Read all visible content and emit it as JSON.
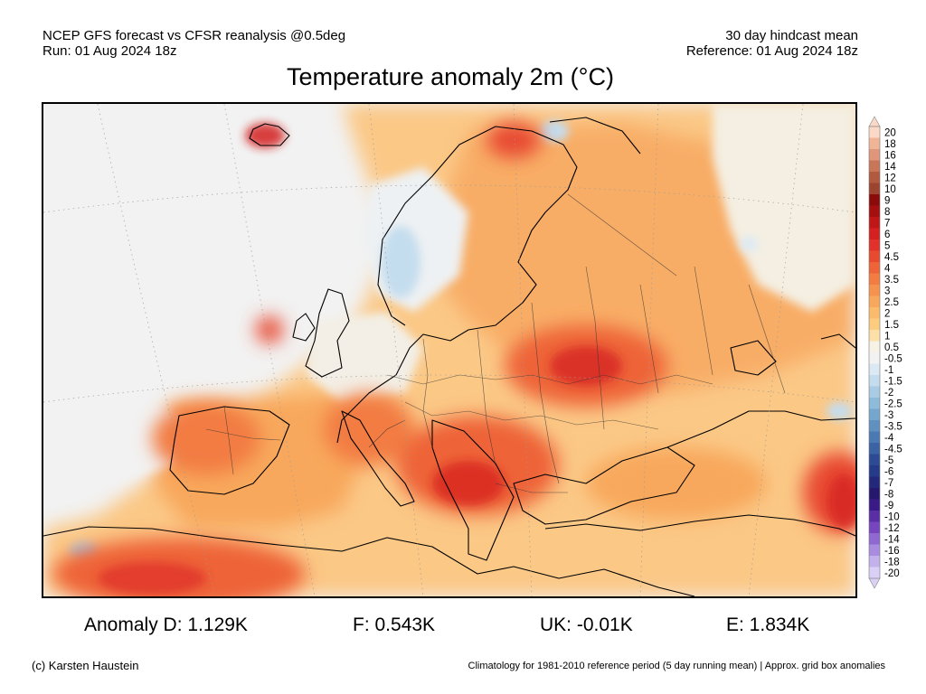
{
  "header": {
    "left_line1": "NCEP GFS forecast vs CFSR reanalysis @0.5deg",
    "left_line2": "Run: 01 Aug 2024 18z",
    "right_line1": "30 day hindcast mean",
    "right_line2": "Reference: 01 Aug 2024 18z"
  },
  "title": "Temperature anomaly 2m (°C)",
  "colorbar": {
    "labels": [
      "20",
      "18",
      "16",
      "14",
      "12",
      "10",
      "9",
      "8",
      "7",
      "6",
      "5",
      "4.5",
      "4",
      "3.5",
      "3",
      "2.5",
      "2",
      "1.5",
      "1",
      "0.5",
      "-0.5",
      "-1",
      "-1.5",
      "-2",
      "-2.5",
      "-3",
      "-3.5",
      "-4",
      "-4.5",
      "-5",
      "-6",
      "-7",
      "-8",
      "-9",
      "-10",
      "-12",
      "-14",
      "-16",
      "-18",
      "-20"
    ],
    "colors": [
      "#fbd9c6",
      "#f0b597",
      "#e0967a",
      "#c97558",
      "#b25a40",
      "#9c4430",
      "#8b0b0b",
      "#a50f0f",
      "#bf1717",
      "#d42020",
      "#e0322a",
      "#e84a30",
      "#ee6338",
      "#f27c42",
      "#f5934e",
      "#f8a85c",
      "#fabb6c",
      "#fccc80",
      "#fde0a8",
      "#f6f2e6",
      "#f2f2f2",
      "#dbe9f5",
      "#c4ddee",
      "#a9cce4",
      "#8ebbd9",
      "#75a6cd",
      "#5f90c0",
      "#4b79b2",
      "#3b62a3",
      "#2c4b94",
      "#253a88",
      "#23287a",
      "#26186d",
      "#3a1a86",
      "#5a2fa6",
      "#7645bf",
      "#9068d2",
      "#a98ce0",
      "#c3b1ec",
      "#dad0f5"
    ]
  },
  "stats": {
    "anomaly_d": "Anomaly D: 1.129K",
    "f": "F: 0.543K",
    "uk": "UK: -0.01K",
    "e": "E: 1.834K"
  },
  "footer": {
    "left": "(c) Karsten Haustein",
    "right": "Climatology for 1981-2010 reference period (5 day running mean) | Approx. grid box anomalies"
  }
}
